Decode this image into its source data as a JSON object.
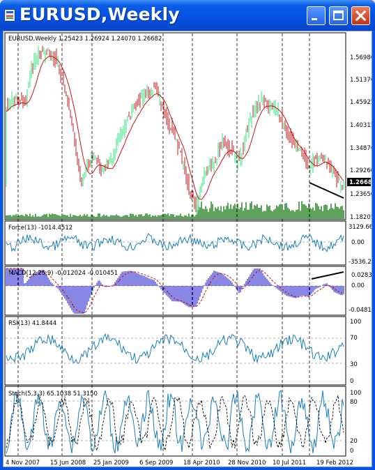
{
  "window": {
    "title": "EURUSD,Weekly"
  },
  "price_panel": {
    "label": "EURUSD,Weekly  1.25423 1.26924 1.24070 1.26682",
    "current_price": "1.26682",
    "ticks": [
      "1.56980",
      "1.51370",
      "1.45925",
      "1.40315",
      "1.34870",
      "1.29260",
      "1.23650",
      "1.18205"
    ],
    "up_color": "#33e07a",
    "down_color": "#b42020",
    "ma_color": "#cc1010",
    "volume_color": "#1a7a1a"
  },
  "force_panel": {
    "label": "Force(13) -1014.4512",
    "ticks": [
      "3129.662",
      "0.00",
      "-3536.23"
    ]
  },
  "macd_panel": {
    "label": "MACD(12,26,9) -0.012024 -0.010451",
    "ticks": [
      "0.02838",
      "0.00",
      "-0.04819"
    ],
    "hist_color": "#1010c8",
    "signal_color": "#cc1010"
  },
  "rsi_panel": {
    "label": "RSI(13) 41.8444",
    "ticks": [
      "100",
      "70",
      "30",
      "0"
    ]
  },
  "stoch_panel": {
    "label": "Stoch(5,3,3) 65.1038 51.3150",
    "ticks": [
      "100",
      "80",
      "20",
      "0"
    ]
  },
  "time_axis": [
    "4 Nov 2007",
    "15 Jun 2008",
    "25 Jan 2009",
    "6 Sep 2009",
    "18 Apr 2010",
    "28 Nov 2010",
    "10 Jul 2011",
    "19 Feb 2012"
  ],
  "indicator_color": "#1a7fb8"
}
